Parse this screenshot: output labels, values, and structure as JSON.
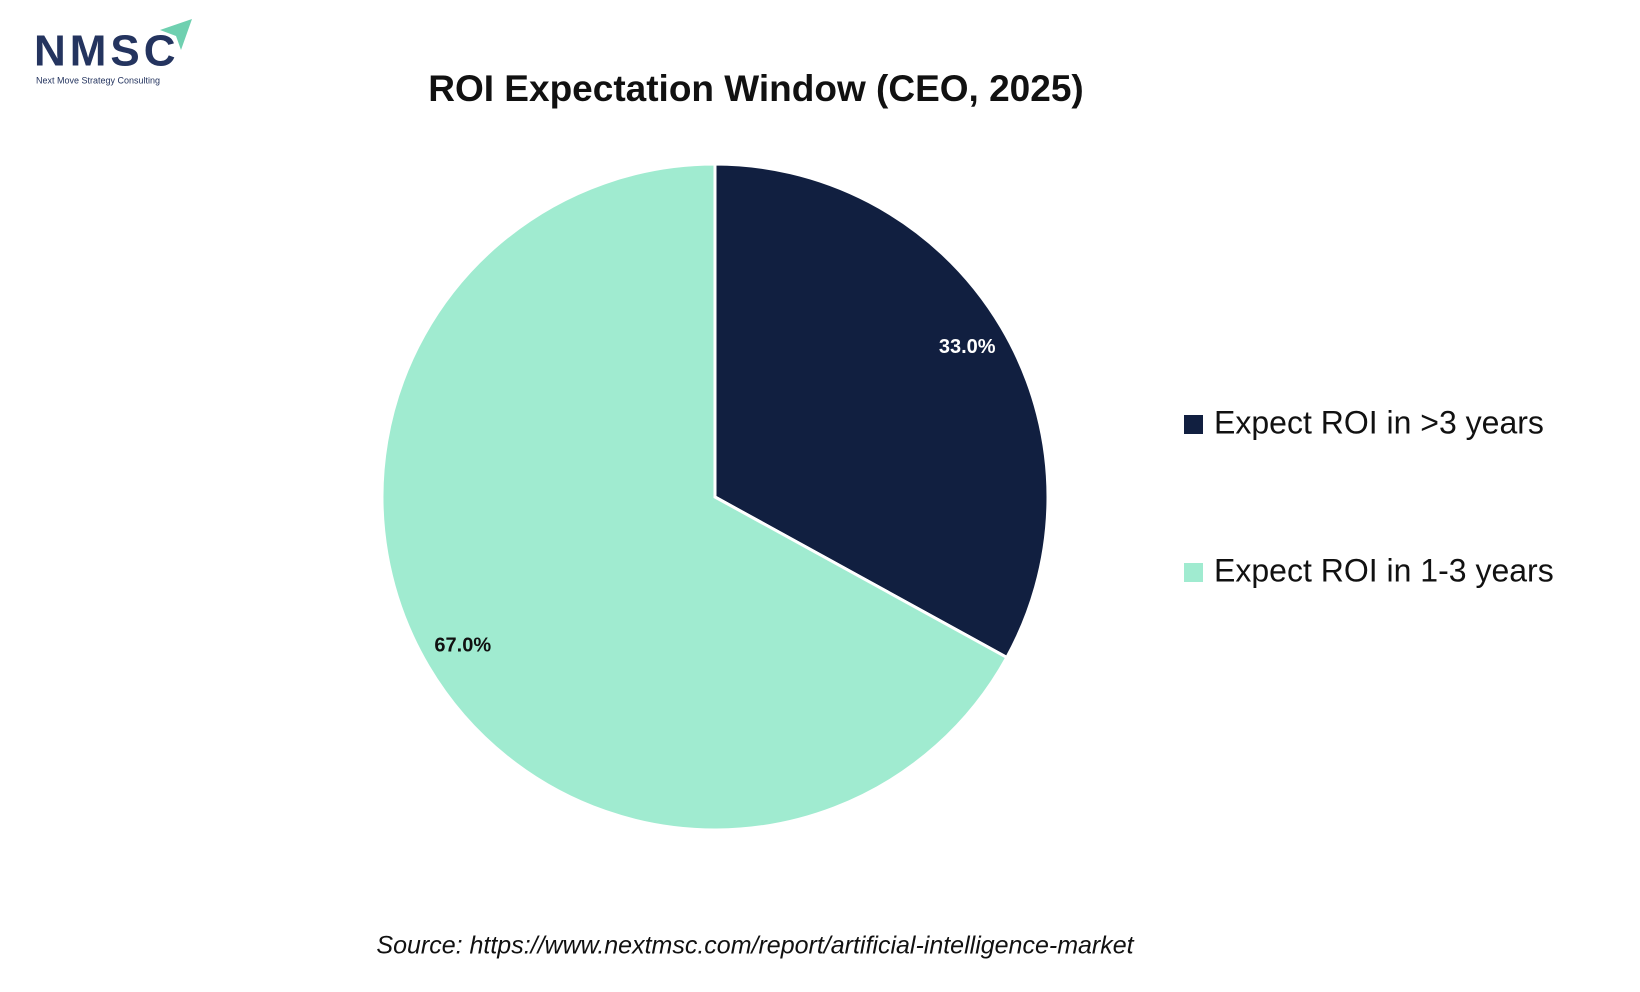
{
  "logo": {
    "text": "NMSC",
    "tagline": "Next Move Strategy Consulting"
  },
  "chart_data": {
    "type": "pie",
    "title": "ROI Expectation Window (CEO, 2025)",
    "categories": [
      "Expect ROI in >3 years",
      "Expect ROI in 1-3 years"
    ],
    "values": [
      33.0,
      67.0
    ],
    "value_labels": [
      "33.0%",
      "67.0%"
    ],
    "colors": [
      "#111f40",
      "#a0ebd0"
    ],
    "legend": "right",
    "source": "Source: https://www.nextmsc.com/report/artificial-intelligence-market"
  }
}
